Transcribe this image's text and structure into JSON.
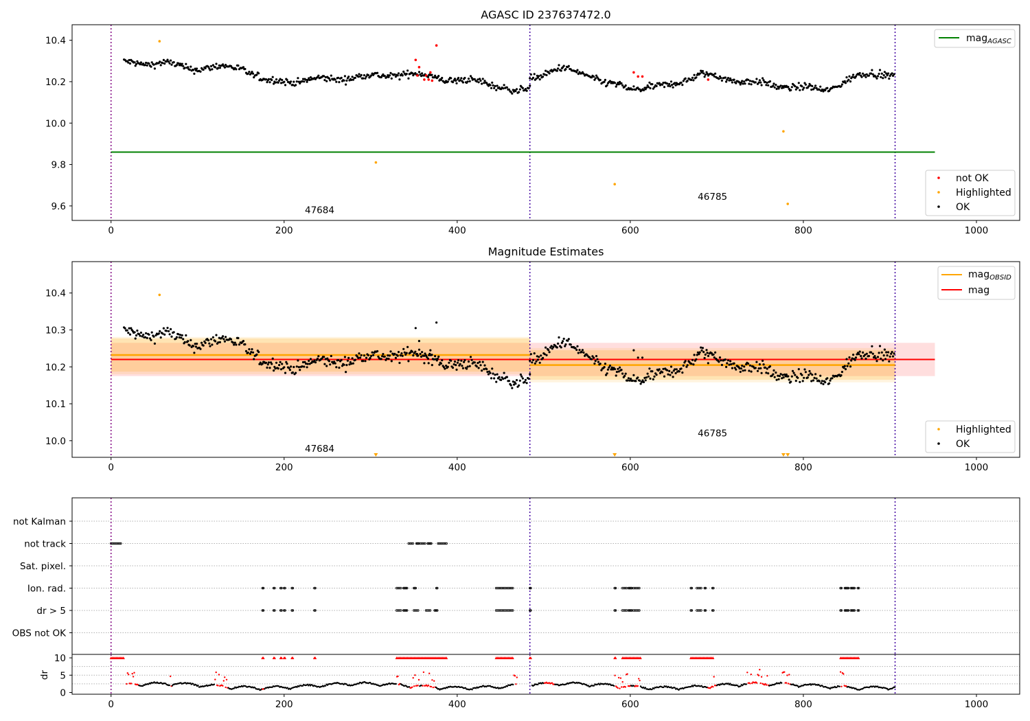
{
  "figure_title": "AGASC ID 237637472.0",
  "chart_data": [
    {
      "id": "top",
      "type": "scatter",
      "title": "AGASC ID 237637472.0",
      "xlim": [
        -45,
        1050
      ],
      "ylim": [
        9.53,
        10.475
      ],
      "xticks": [
        0,
        200,
        400,
        600,
        800,
        1000
      ],
      "yticks": [
        9.6,
        9.8,
        10.0,
        10.2,
        10.4
      ],
      "ytick_labels": [
        "9.6",
        "9.8",
        "10.0",
        "10.2",
        "10.4"
      ],
      "vlines": [
        0,
        484,
        906
      ],
      "hline": {
        "name": "mag_AGASC",
        "value": 9.86,
        "x0": 0,
        "x1": 952,
        "color": "#008000"
      },
      "obsid_labels": [
        {
          "x": 224,
          "y": 9.565,
          "text": "47684"
        },
        {
          "x": 678,
          "y": 9.63,
          "text": "46785"
        }
      ],
      "segments": [
        {
          "x0": 15,
          "x1": 484,
          "levels": [
            [
              15,
              10.29
            ],
            [
              60,
              10.29
            ],
            [
              90,
              10.265
            ],
            [
              150,
              10.27
            ],
            [
              180,
              10.2
            ],
            [
              220,
              10.205
            ],
            [
              260,
              10.215
            ],
            [
              330,
              10.235
            ],
            [
              370,
              10.23
            ],
            [
              400,
              10.2
            ],
            [
              430,
              10.205
            ],
            [
              455,
              10.165
            ],
            [
              470,
              10.145
            ],
            [
              484,
              10.18
            ]
          ],
          "amp": 0.024
        },
        {
          "x0": 484,
          "x1": 906,
          "levels": [
            [
              484,
              10.22
            ],
            [
              520,
              10.26
            ],
            [
              550,
              10.24
            ],
            [
              570,
              10.19
            ],
            [
              600,
              10.17
            ],
            [
              640,
              10.175
            ],
            [
              680,
              10.235
            ],
            [
              720,
              10.21
            ],
            [
              760,
              10.185
            ],
            [
              800,
              10.17
            ],
            [
              825,
              10.16
            ],
            [
              860,
              10.22
            ],
            [
              880,
              10.245
            ],
            [
              906,
              10.23
            ]
          ],
          "amp": 0.024
        }
      ],
      "not_ok": [
        [
          352,
          10.305
        ],
        [
          354,
          10.23
        ],
        [
          356,
          10.27
        ],
        [
          362,
          10.21
        ],
        [
          364,
          10.23
        ],
        [
          367,
          10.21
        ],
        [
          369,
          10.245
        ],
        [
          371,
          10.205
        ],
        [
          376,
          10.375
        ],
        [
          604,
          10.245
        ],
        [
          609,
          10.225
        ],
        [
          614,
          10.225
        ],
        [
          690,
          10.21
        ]
      ],
      "highlighted": [
        [
          56,
          10.395
        ],
        [
          306,
          9.81
        ],
        [
          582,
          9.705
        ],
        [
          777,
          9.96
        ],
        [
          782,
          9.61
        ]
      ],
      "legend_top": [
        {
          "label": "mag",
          "sub": "AGASC",
          "color": "#008000",
          "kind": "line"
        }
      ],
      "legend_bottom": [
        {
          "label": "not OK",
          "color": "#ff0000",
          "kind": "dot"
        },
        {
          "label": "Highlighted",
          "color": "#ffa500",
          "kind": "dot"
        },
        {
          "label": "OK",
          "color": "#000000",
          "kind": "dot"
        }
      ]
    },
    {
      "id": "mid",
      "type": "scatter",
      "title": "Magnitude Estimates",
      "xlim": [
        -45,
        1050
      ],
      "ylim": [
        9.955,
        10.485
      ],
      "xticks": [
        0,
        200,
        400,
        600,
        800,
        1000
      ],
      "yticks": [
        10.0,
        10.1,
        10.2,
        10.3,
        10.4
      ],
      "ytick_labels": [
        "10.0",
        "10.1",
        "10.2",
        "10.3",
        "10.4"
      ],
      "vlines": [
        0,
        484,
        906
      ],
      "mag": {
        "value": 10.22,
        "band_low": 10.175,
        "band_high": 10.265,
        "x0": 0,
        "x1": 952,
        "color": "#ff0000"
      },
      "mag_obsid": [
        {
          "x0": 0,
          "x1": 484,
          "value": 10.232,
          "inner": [
            10.187,
            10.277
          ],
          "outer": [
            10.18,
            10.281
          ]
        },
        {
          "x0": 484,
          "x1": 906,
          "value": 10.205,
          "inner": [
            10.165,
            10.245
          ],
          "outer": [
            10.158,
            10.251
          ]
        }
      ],
      "obsid_labels": [
        {
          "x": 224,
          "y": 9.97,
          "text": "47684"
        },
        {
          "x": 678,
          "y": 10.012,
          "text": "46785"
        }
      ],
      "highlighted": [
        [
          56,
          10.395
        ]
      ],
      "offscale": [
        306,
        582,
        777,
        782
      ],
      "legend_top": [
        {
          "label": "mag",
          "sub": "OBSID",
          "color": "#ffa500",
          "kind": "line"
        },
        {
          "label": "mag",
          "sub": "",
          "color": "#ff0000",
          "kind": "line"
        }
      ],
      "legend_bottom": [
        {
          "label": "Highlighted",
          "color": "#ffa500",
          "kind": "dot"
        },
        {
          "label": "OK",
          "color": "#000000",
          "kind": "dot"
        }
      ]
    },
    {
      "id": "flags",
      "type": "scatter",
      "xlim": [
        -45,
        1050
      ],
      "vlines": [
        0,
        484,
        906
      ],
      "categories": [
        "not Kalman",
        "not track",
        "Sat. pixel.",
        "Ion. rad.",
        "dr > 5",
        "OBS not OK"
      ],
      "flag_points": {
        "not track": [
          [
            0,
            12
          ],
          [
            344,
            350
          ],
          [
            353,
            356
          ],
          [
            358,
            364
          ],
          [
            366,
            370
          ],
          [
            378,
            388
          ]
        ],
        "Ion. rad.": [
          [
            175,
            176
          ],
          [
            188,
            189
          ],
          [
            196,
            197
          ],
          [
            200,
            201
          ],
          [
            209,
            210
          ],
          [
            235,
            236
          ],
          [
            330,
            336
          ],
          [
            338,
            342
          ],
          [
            350,
            352
          ],
          [
            376,
            377
          ],
          [
            445,
            465
          ],
          [
            484,
            485
          ],
          [
            582,
            583
          ],
          [
            591,
            596
          ],
          [
            598,
            602
          ],
          [
            604,
            612
          ],
          [
            670,
            671
          ],
          [
            677,
            683
          ],
          [
            686,
            687
          ],
          [
            695,
            696
          ],
          [
            843,
            844
          ],
          [
            848,
            852
          ],
          [
            855,
            859
          ],
          [
            863,
            864
          ]
        ],
        "dr > 5": [
          [
            175,
            176
          ],
          [
            188,
            189
          ],
          [
            196,
            197
          ],
          [
            200,
            201
          ],
          [
            209,
            210
          ],
          [
            235,
            236
          ],
          [
            330,
            336
          ],
          [
            338,
            342
          ],
          [
            350,
            355
          ],
          [
            364,
            370
          ],
          [
            374,
            377
          ],
          [
            445,
            465
          ],
          [
            484,
            485
          ],
          [
            582,
            583
          ],
          [
            591,
            596
          ],
          [
            598,
            602
          ],
          [
            604,
            612
          ],
          [
            670,
            671
          ],
          [
            677,
            683
          ],
          [
            686,
            687
          ],
          [
            695,
            696
          ],
          [
            843,
            844
          ],
          [
            848,
            852
          ],
          [
            855,
            859
          ],
          [
            863,
            864
          ]
        ]
      }
    },
    {
      "id": "dr",
      "type": "scatter",
      "ylabel": "dr",
      "xlim": [
        -45,
        1050
      ],
      "ylim": [
        -0.5,
        11
      ],
      "xticks": [
        0,
        200,
        400,
        600,
        800,
        1000
      ],
      "yticks": [
        0,
        5,
        10
      ],
      "ytick_labels": [
        "0",
        "5",
        "10"
      ],
      "vlines": [
        0,
        484,
        906
      ],
      "capped_value": 10,
      "capped_runs": [
        [
          0,
          15
        ],
        [
          175,
          176
        ],
        [
          188,
          189
        ],
        [
          196,
          197
        ],
        [
          200,
          201
        ],
        [
          209,
          210
        ],
        [
          235,
          236
        ],
        [
          330,
          388
        ],
        [
          445,
          465
        ],
        [
          484,
          485
        ],
        [
          582,
          583
        ],
        [
          591,
          612
        ],
        [
          670,
          696
        ],
        [
          843,
          864
        ]
      ],
      "red_runs": [
        [
          18,
          32
        ],
        [
          68,
          70
        ],
        [
          120,
          135
        ],
        [
          175,
          177
        ],
        [
          330,
          334
        ],
        [
          345,
          356
        ],
        [
          360,
          375
        ],
        [
          465,
          470
        ],
        [
          500,
          512
        ],
        [
          582,
          600
        ],
        [
          605,
          612
        ],
        [
          690,
          700
        ],
        [
          735,
          760
        ],
        [
          775,
          785
        ],
        [
          843,
          850
        ]
      ]
    }
  ]
}
